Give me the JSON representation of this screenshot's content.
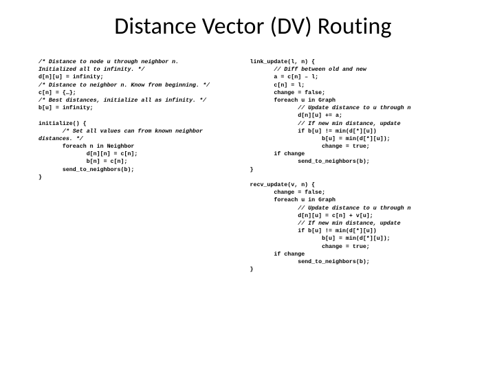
{
  "title": "Distance Vector (DV) Routing",
  "left": {
    "c1": "/* Distance to node u through neighbor n.\nInitialized all to infinity. */",
    "l1": "d[n][u] = infinity;",
    "c2": "/* Distance to neighbor n. Know from beginning. */",
    "l2": "c[n] = {…};",
    "c3": "/* Best distances, initialize all as infinity. */",
    "l3": "b[u] = infinity;",
    "l4": "initialize() {",
    "c4": "       /* Set all values can from known neighbor\ndistances. */",
    "l5": "       foreach n in Neighbor\n              d[n][n] = c[n];\n              b[n] = c[n];\n       send_to_neighbors(b);\n}"
  },
  "right": {
    "l1": "link_update(l, n) {",
    "c1": "       // Diff between old and new",
    "l2": "       a = c[n] – l;\n       c[n] = l;\n       change = false;\n       foreach u in Graph",
    "c2": "              // Update distance to u through n",
    "l3": "              d[n][u] += a;",
    "c3": "              // If new min distance, update",
    "l4": "              if b[u] != min(d[*][u])\n                     b[u] = min(d[*][u]);\n                     change = true;\n       if change\n              send_to_neighbors(b);\n}",
    "l5": "recv_update(v, n) {\n       change = false;\n       foreach u in Graph",
    "c4": "              // Update distance to u through n",
    "l6": "              d[n][u] = c[n] + v[u];",
    "c5": "              // If new min distance, update",
    "l7": "              if b[u] != min(d[*][u])\n                     b[u] = min(d[*][u]);\n                     change = true;\n       if change\n              send_to_neighbors(b);\n}"
  },
  "colors": {
    "background": "#ffffff",
    "text": "#000000"
  },
  "typography": {
    "title_family": "Calibri",
    "title_size_pt": 28,
    "code_family": "Courier New",
    "code_size_pt": 7
  }
}
